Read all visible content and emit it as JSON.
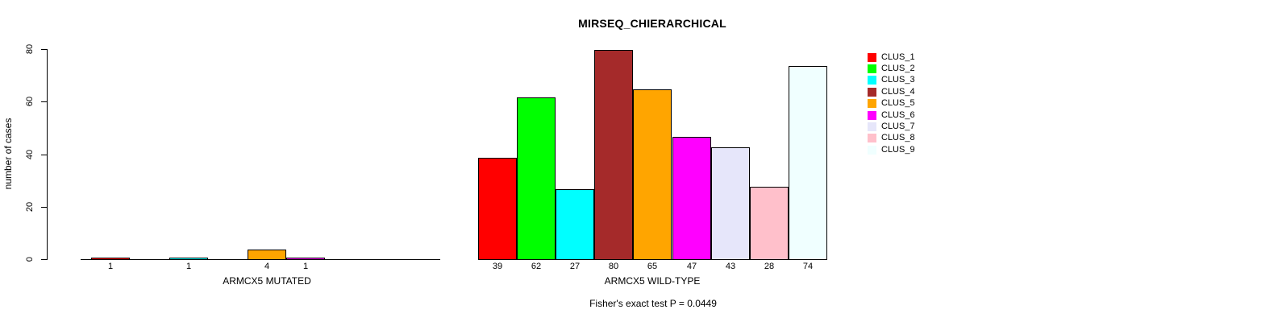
{
  "chart_data": {
    "type": "bar",
    "title": "MIRSEQ_CHIERARCHICAL",
    "ylabel": "number of cases",
    "xlabel": "",
    "ylim": [
      0,
      80
    ],
    "yticks": [
      0,
      20,
      40,
      60,
      80
    ],
    "grid": false,
    "legend_position": "top-right",
    "clusters": [
      {
        "name": "CLUS_1",
        "color": "#FF0000"
      },
      {
        "name": "CLUS_2",
        "color": "#00FF00"
      },
      {
        "name": "CLUS_3",
        "color": "#00FFFF"
      },
      {
        "name": "CLUS_4",
        "color": "#A52A2A"
      },
      {
        "name": "CLUS_5",
        "color": "#FFA500"
      },
      {
        "name": "CLUS_6",
        "color": "#FF00FF"
      },
      {
        "name": "CLUS_7",
        "color": "#E6E6FA"
      },
      {
        "name": "CLUS_8",
        "color": "#FFC0CB"
      },
      {
        "name": "CLUS_9",
        "color": "#F0FFFF"
      }
    ],
    "groups": [
      {
        "label": "ARMCX5 MUTATED",
        "values": [
          1,
          0,
          1,
          0,
          4,
          1,
          0,
          0,
          0
        ]
      },
      {
        "label": "ARMCX5 WILD-TYPE",
        "values": [
          39,
          62,
          27,
          80,
          65,
          47,
          43,
          28,
          74
        ]
      }
    ],
    "annotation": "Fisher's exact test P = 0.0449",
    "bar_value_labels_shown": true,
    "axis_color": "#000000",
    "background_color": "#FFFFFF"
  }
}
